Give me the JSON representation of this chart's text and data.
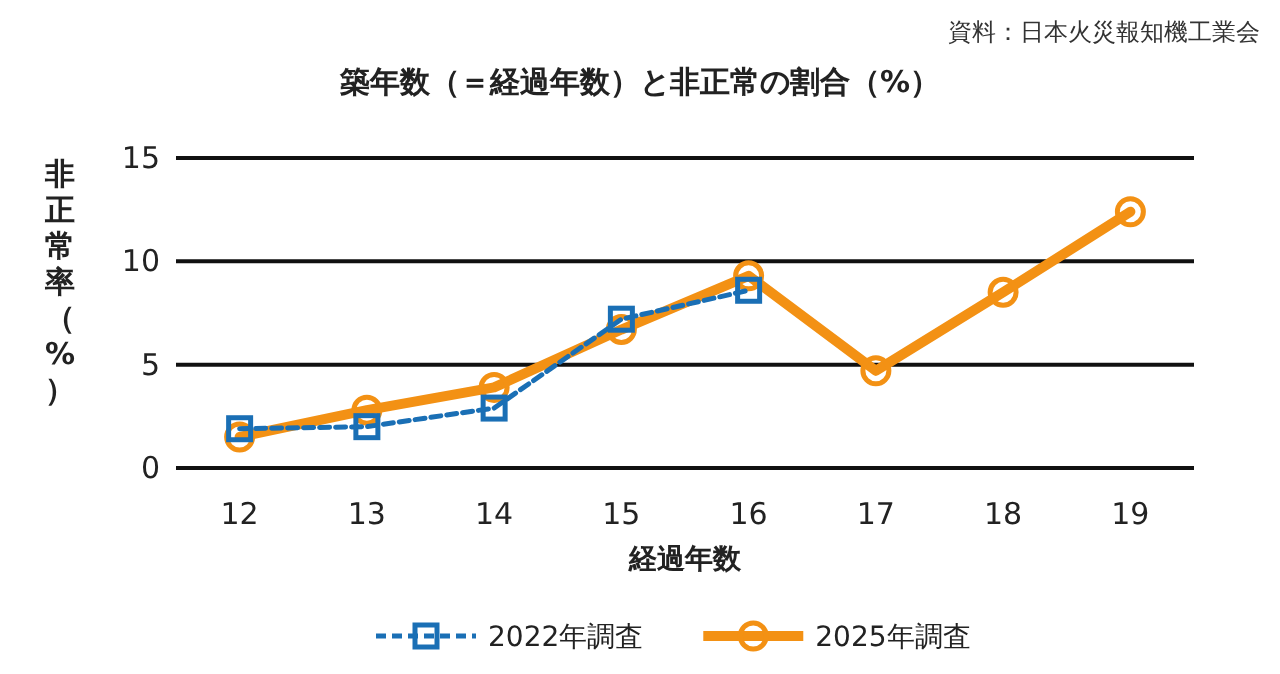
{
  "chart_data": {
    "type": "line",
    "title": "築年数（＝経過年数）と非正常の割合（%）",
    "xlabel": "経過年数",
    "ylabel": "非正常率（%）",
    "annotations": [
      "資料：日本火災報知機工業会"
    ],
    "categories": [
      "12",
      "13",
      "14",
      "15",
      "16",
      "17",
      "18",
      "19"
    ],
    "series": [
      {
        "name": "2022年調査",
        "color": "#1a6fb5",
        "marker": "square",
        "line_style": "dashed",
        "values": [
          1.9,
          2.0,
          2.9,
          7.2,
          8.6,
          null,
          null,
          null
        ]
      },
      {
        "name": "2025年調査",
        "color": "#f39114",
        "marker": "circle",
        "line_style": "solid",
        "values": [
          1.5,
          2.8,
          3.9,
          6.7,
          9.3,
          4.7,
          8.5,
          12.4
        ]
      }
    ],
    "ylim": [
      0,
      15
    ],
    "yticks": [
      0,
      5,
      10,
      15
    ],
    "grid": "y",
    "legend": "bottom"
  }
}
